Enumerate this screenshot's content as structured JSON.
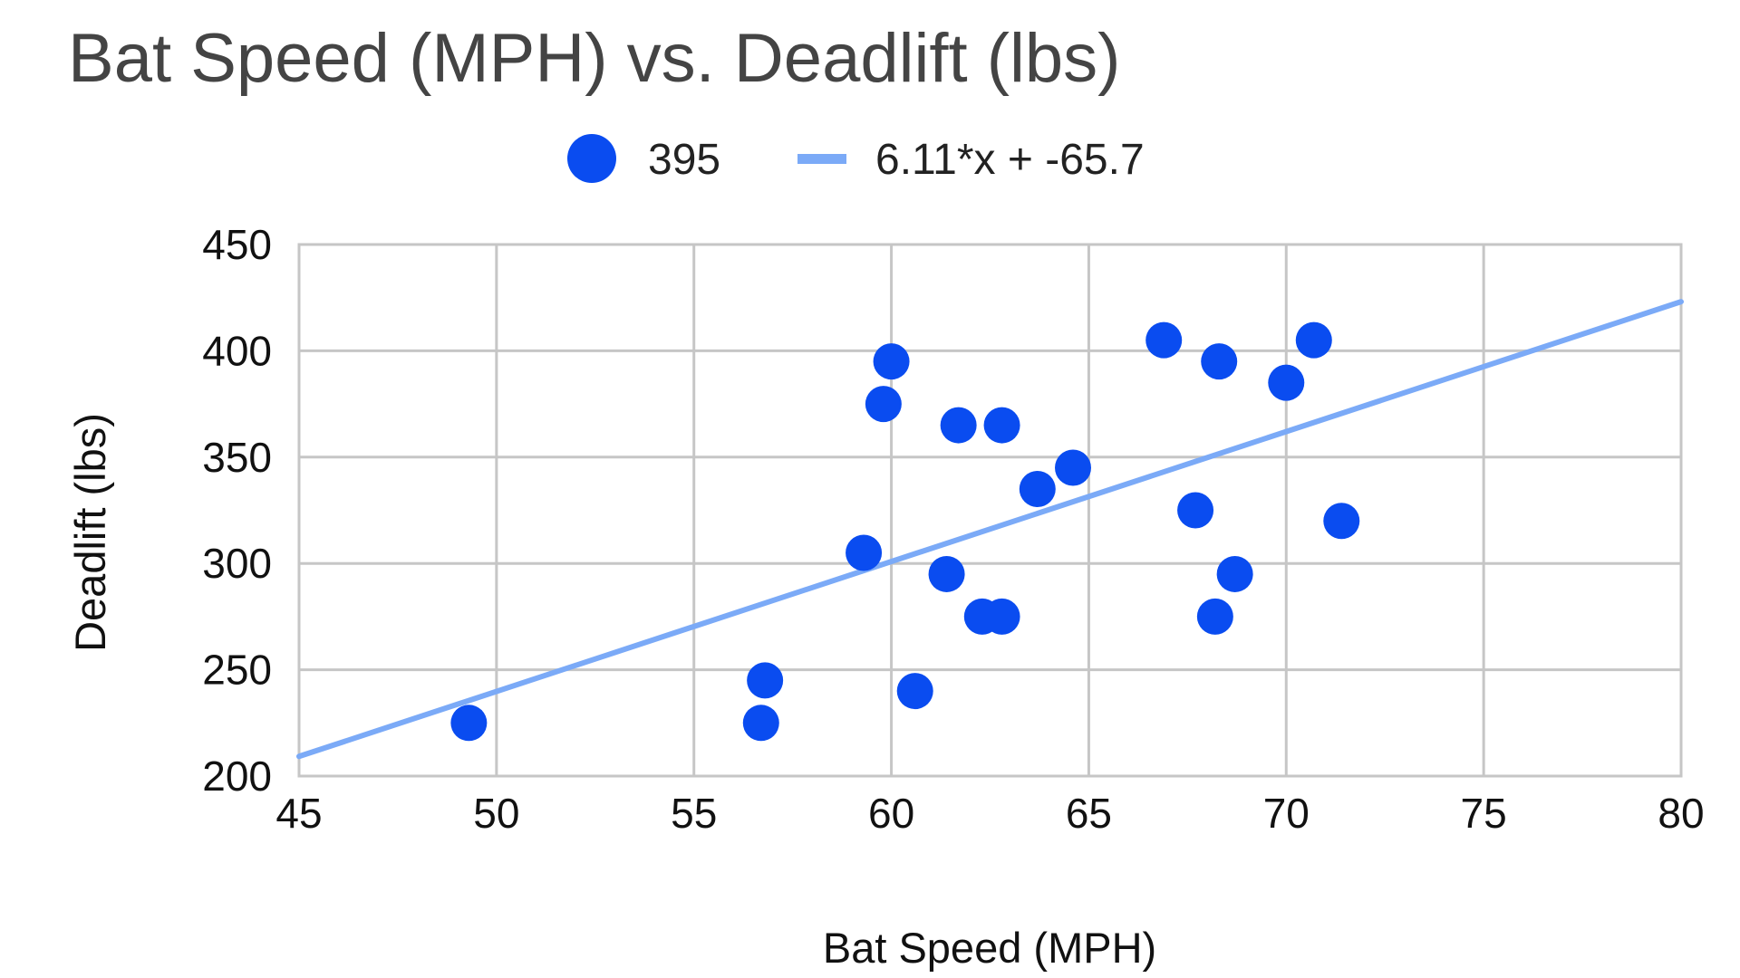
{
  "chart_data": {
    "type": "scatter",
    "title": "Bat Speed (MPH) vs. Deadlift (lbs)",
    "xlabel": "Bat Speed (MPH)",
    "ylabel": "Deadlift (lbs)",
    "xlim": [
      45,
      80
    ],
    "ylim": [
      200,
      450
    ],
    "xticks": [
      "45",
      "50",
      "55",
      "60",
      "65",
      "70",
      "75",
      "80"
    ],
    "yticks": [
      "200",
      "250",
      "300",
      "350",
      "400",
      "450"
    ],
    "grid": true,
    "legend_position": "top",
    "series": [
      {
        "name": "395",
        "type": "scatter",
        "color": "#0a4cf0",
        "points": [
          [
            49.3,
            225
          ],
          [
            56.7,
            225
          ],
          [
            56.8,
            245
          ],
          [
            60.6,
            240
          ],
          [
            59.3,
            305
          ],
          [
            59.8,
            375
          ],
          [
            60.0,
            395
          ],
          [
            61.4,
            295
          ],
          [
            61.7,
            365
          ],
          [
            62.3,
            275
          ],
          [
            62.8,
            275
          ],
          [
            62.8,
            365
          ],
          [
            63.7,
            335
          ],
          [
            64.6,
            345
          ],
          [
            66.9,
            405
          ],
          [
            67.7,
            325
          ],
          [
            68.2,
            275
          ],
          [
            68.3,
            395
          ],
          [
            68.7,
            295
          ],
          [
            70.0,
            385
          ],
          [
            70.7,
            405
          ],
          [
            71.4,
            320
          ]
        ]
      },
      {
        "name": "6.11*x + -65.7",
        "type": "trendline",
        "color": "#7baaf7",
        "slope": 6.11,
        "intercept": -65.7
      }
    ]
  }
}
